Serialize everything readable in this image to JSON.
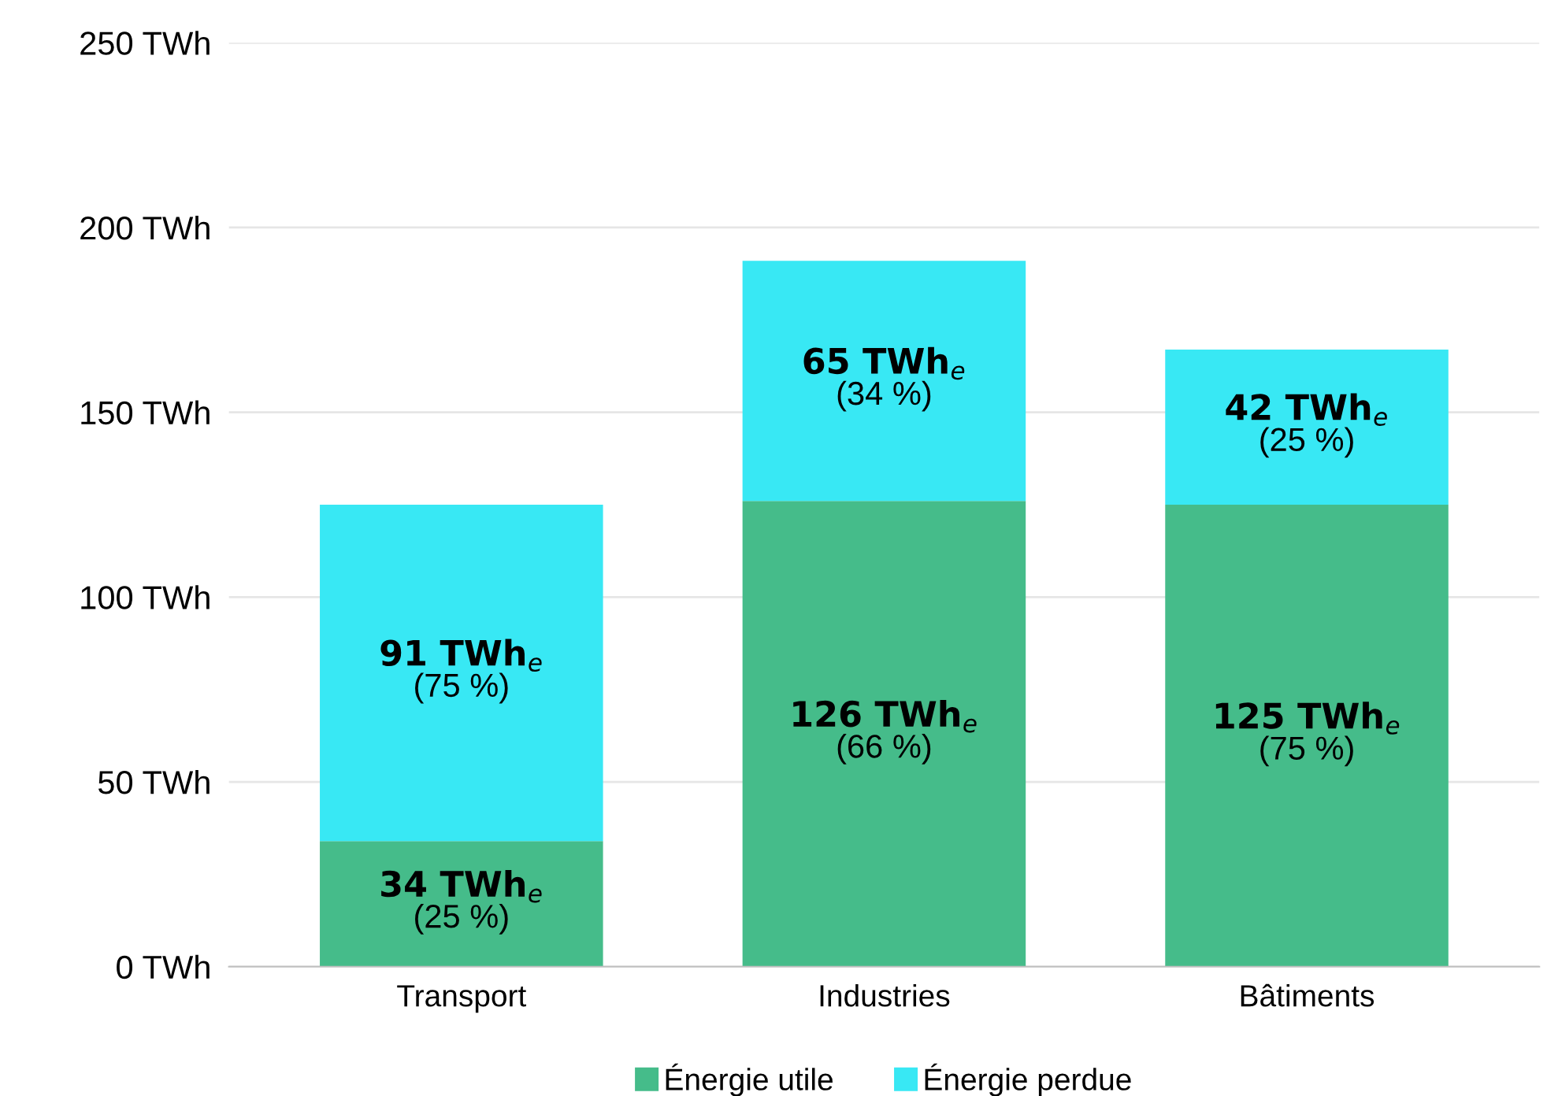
{
  "chart_data": {
    "type": "bar",
    "stacked": true,
    "categories": [
      "Transport",
      "Industries",
      "Bâtiments"
    ],
    "series": [
      {
        "name": "Énergie utile",
        "color": "#45bc8a",
        "values": [
          34,
          126,
          125
        ],
        "value_labels": [
          "34 TWh$_{e}$\n(25 %)",
          "126 TWh$_{e}$\n(66 %)",
          "125 TWh$_{e}$\n(75 %)"
        ]
      },
      {
        "name": "Énergie perdue",
        "color": "#38e8f4",
        "values": [
          91,
          65,
          42
        ],
        "value_labels": [
          "91 TWh$_{e}$\n(75 %)",
          "65 TWh$_{e}$\n(34 %)",
          "42 TWh$_{e}$\n(25 %)"
        ]
      }
    ],
    "ylim": [
      0,
      250
    ],
    "yticks": [
      {
        "value": 0,
        "label": "0 TWh"
      },
      {
        "value": 50,
        "label": "50 TWh"
      },
      {
        "value": 100,
        "label": "100 TWh"
      },
      {
        "value": 150,
        "label": "150 TWh"
      },
      {
        "value": 200,
        "label": "200 TWh"
      },
      {
        "value": 250,
        "label": "250 TWh"
      }
    ],
    "grid": "y",
    "legend": "bottom"
  }
}
